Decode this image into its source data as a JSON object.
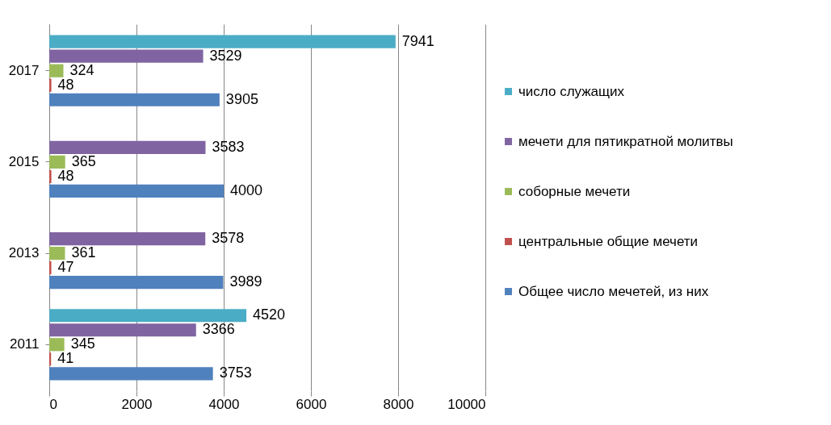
{
  "chart_data": {
    "type": "bar",
    "orientation": "horizontal",
    "categories": [
      "2017",
      "2015",
      "2013",
      "2011"
    ],
    "series": [
      {
        "name": "Общее число мечетей, из них",
        "color": "#4f81bd",
        "values": [
          3905,
          4000,
          3989,
          3753
        ]
      },
      {
        "name": "центральные общие мечети",
        "color": "#c0504d",
        "values": [
          48,
          48,
          47,
          41
        ]
      },
      {
        "name": "соборные мечети",
        "color": "#9bbb59",
        "values": [
          324,
          365,
          361,
          345
        ]
      },
      {
        "name": "мечети для пятикратной молитвы",
        "color": "#8064a2",
        "values": [
          3529,
          3583,
          3578,
          3366
        ]
      },
      {
        "name": "число служащих",
        "color": "#4bacc6",
        "values": [
          7941,
          null,
          null,
          4520
        ]
      }
    ],
    "xlim": [
      0,
      10000
    ],
    "xticks": [
      0,
      2000,
      4000,
      6000,
      8000,
      10000
    ],
    "grid": "x",
    "legend": "right",
    "data_labels": true
  }
}
